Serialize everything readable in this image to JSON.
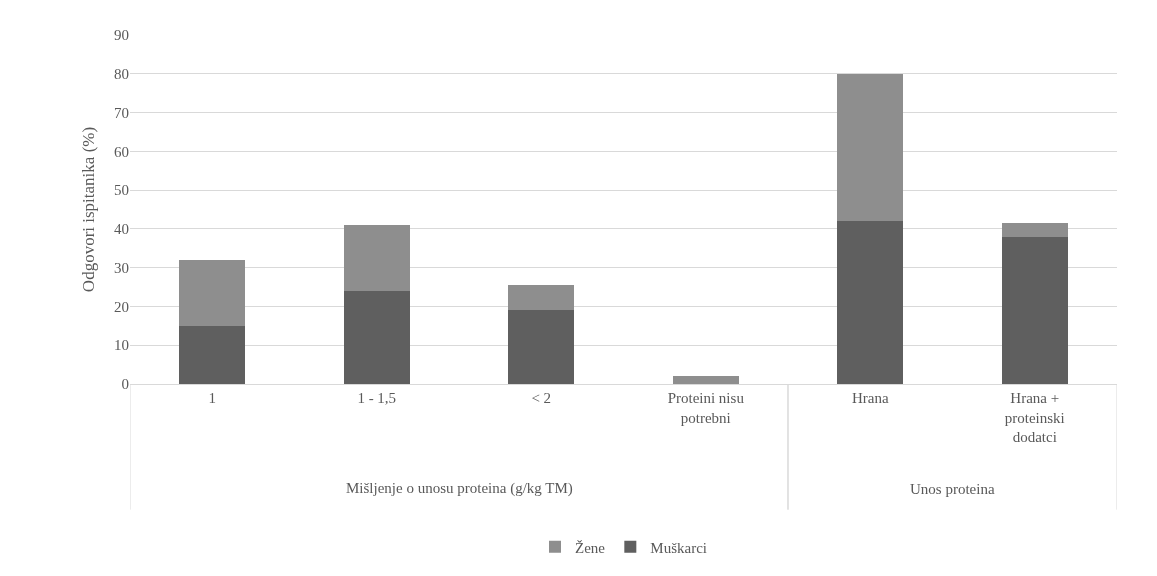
{
  "chart_data": {
    "type": "bar",
    "stacked": true,
    "ylabel": "Odgovori ispitanika (%)",
    "categories": [
      "1",
      "1 - 1,5",
      "< 2",
      "Proteini nisu potrebni",
      "Hrana",
      "Hrana + proteinski dodatci"
    ],
    "series": [
      {
        "name": "Muškarci",
        "color": "#5f5f5f",
        "values": [
          15,
          24,
          19,
          0,
          42,
          38
        ]
      },
      {
        "name": "Žene",
        "color": "#8e8e8e",
        "values": [
          17,
          17,
          6.5,
          2,
          38,
          3.5
        ]
      }
    ],
    "ylim": [
      0,
      90
    ],
    "yticks": [
      0,
      10,
      20,
      30,
      40,
      50,
      60,
      70,
      80,
      90
    ],
    "annotations": [
      "Mišljenje o unosu proteina (g/kg TM)",
      "Unos proteina"
    ],
    "grid": "y",
    "legend": "bottom"
  }
}
